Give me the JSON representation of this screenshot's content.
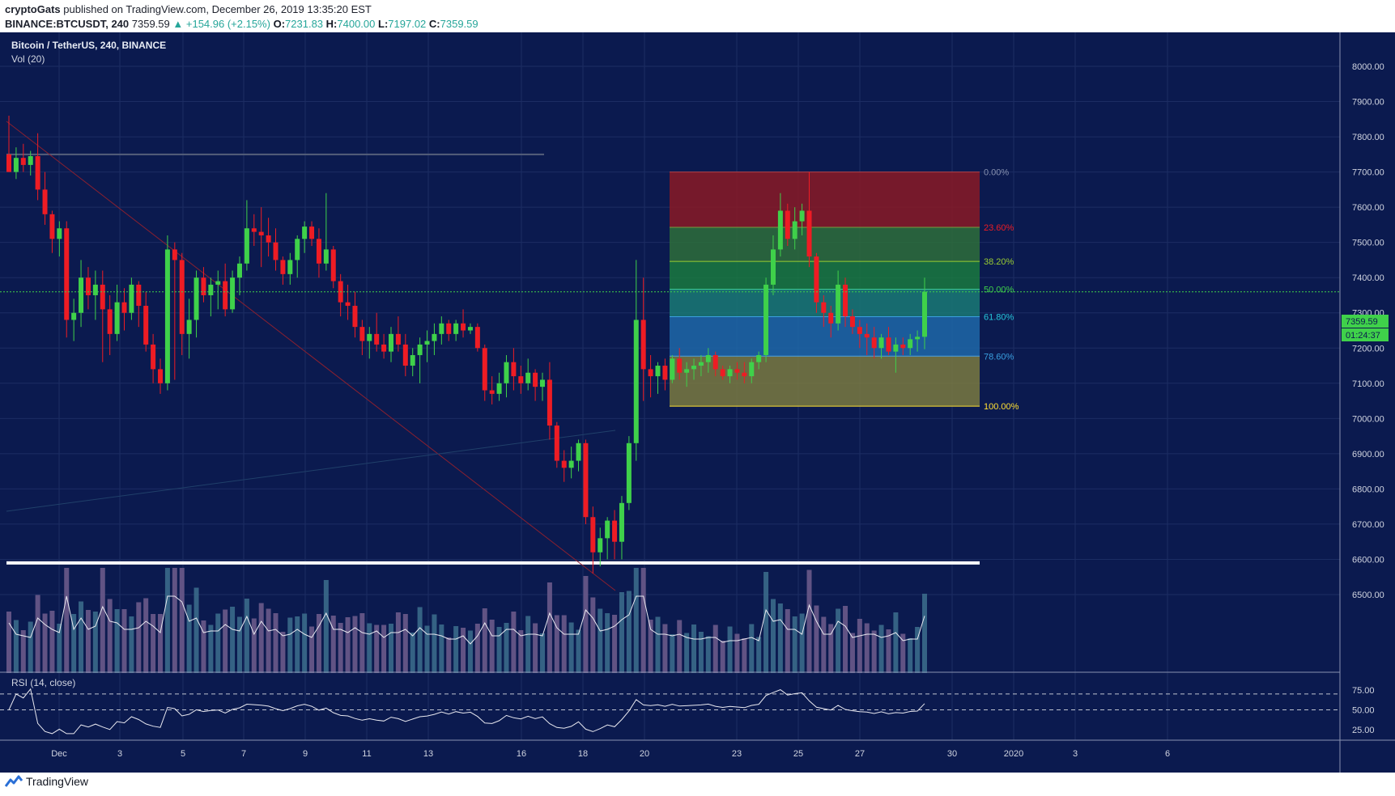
{
  "header": {
    "publisher": "cryptoGats",
    "published_text": "published on TradingView.com, December 26, 2019 13:35:20 EST",
    "symbol": "BINANCE:BTCUSDT, 240",
    "last": "7359.59",
    "change": "▲ +154.96 (+2.15%)",
    "o_label": "O:",
    "o_value": "7231.83",
    "h_label": "H:",
    "h_value": "7400.00",
    "l_label": "L:",
    "l_value": "7197.02",
    "c_label": "C:",
    "c_value": "7359.59"
  },
  "chart_title": "Bitcoin / TetherUS, 240, BINANCE",
  "volume_label": "Vol (20)",
  "rsi_label": "RSI (14, close)",
  "footer": {
    "brand": "TradingView"
  },
  "colors": {
    "background": "#0b1a4f",
    "bull": "#3fd14a",
    "bear": "#ee1c24",
    "grid": "#1c2d63",
    "text": "#d0d4e0"
  },
  "price_tag": {
    "value": "7359.59",
    "timer": "01:24:37"
  },
  "chart_data": {
    "type": "candlestick",
    "y_ticks": [
      8000,
      7900,
      7800,
      7700,
      7600,
      7500,
      7400,
      7300,
      7200,
      7100,
      7000,
      6900,
      6800,
      6700,
      6600,
      6500
    ],
    "ylim": [
      6455,
      8130
    ],
    "x_ticks": [
      "Dec",
      "3",
      "5",
      "7",
      "9",
      "11",
      "13",
      "16",
      "18",
      "20",
      "23",
      "25",
      "27",
      "30",
      "2020",
      "3",
      "6"
    ],
    "rsi_ticks": [
      75,
      50,
      25
    ],
    "rsi_bands": [
      70,
      50
    ],
    "fibonacci": [
      {
        "level": "0.00%",
        "price": 7700
      },
      {
        "level": "23.60%",
        "price": 7543
      },
      {
        "level": "38.20%",
        "price": 7446
      },
      {
        "level": "50.00%",
        "price": 7367
      },
      {
        "level": "61.80%",
        "price": 7289
      },
      {
        "level": "78.60%",
        "price": 7177
      },
      {
        "level": "100.00%",
        "price": 7035
      }
    ],
    "horizontal_lines": [
      {
        "price": 7750,
        "color": "#555f7a"
      },
      {
        "price": 6590,
        "color": "#ffffff"
      }
    ],
    "candles": [
      [
        7750,
        7860,
        7700,
        7700
      ],
      [
        7700,
        7770,
        7680,
        7740
      ],
      [
        7740,
        7780,
        7700,
        7720
      ],
      [
        7720,
        7760,
        7690,
        7745
      ],
      [
        7745,
        7810,
        7620,
        7650
      ],
      [
        7650,
        7700,
        7550,
        7580
      ],
      [
        7580,
        7590,
        7470,
        7510
      ],
      [
        7510,
        7560,
        7460,
        7540
      ],
      [
        7540,
        7560,
        7230,
        7280
      ],
      [
        7280,
        7340,
        7220,
        7300
      ],
      [
        7300,
        7450,
        7260,
        7400
      ],
      [
        7400,
        7430,
        7310,
        7350
      ],
      [
        7350,
        7420,
        7280,
        7380
      ],
      [
        7380,
        7420,
        7160,
        7310
      ],
      [
        7310,
        7350,
        7180,
        7240
      ],
      [
        7240,
        7380,
        7220,
        7330
      ],
      [
        7330,
        7370,
        7250,
        7300
      ],
      [
        7300,
        7400,
        7280,
        7380
      ],
      [
        7380,
        7390,
        7260,
        7320
      ],
      [
        7320,
        7360,
        7190,
        7210
      ],
      [
        7210,
        7240,
        7100,
        7140
      ],
      [
        7140,
        7170,
        7070,
        7100
      ],
      [
        7100,
        7520,
        7080,
        7480
      ],
      [
        7480,
        7500,
        7110,
        7450
      ],
      [
        7450,
        7470,
        7180,
        7240
      ],
      [
        7240,
        7340,
        7170,
        7280
      ],
      [
        7280,
        7420,
        7230,
        7400
      ],
      [
        7400,
        7430,
        7330,
        7350
      ],
      [
        7350,
        7400,
        7290,
        7380
      ],
      [
        7380,
        7420,
        7310,
        7390
      ],
      [
        7390,
        7440,
        7290,
        7310
      ],
      [
        7310,
        7420,
        7300,
        7400
      ],
      [
        7400,
        7460,
        7350,
        7440
      ],
      [
        7440,
        7620,
        7420,
        7540
      ],
      [
        7540,
        7580,
        7490,
        7530
      ],
      [
        7530,
        7600,
        7430,
        7520
      ],
      [
        7520,
        7570,
        7460,
        7500
      ],
      [
        7500,
        7540,
        7420,
        7450
      ],
      [
        7450,
        7460,
        7380,
        7410
      ],
      [
        7410,
        7470,
        7380,
        7450
      ],
      [
        7450,
        7520,
        7400,
        7510
      ],
      [
        7510,
        7560,
        7470,
        7545
      ],
      [
        7545,
        7560,
        7490,
        7510
      ],
      [
        7510,
        7540,
        7400,
        7440
      ],
      [
        7440,
        7640,
        7420,
        7480
      ],
      [
        7480,
        7490,
        7370,
        7390
      ],
      [
        7390,
        7410,
        7290,
        7330
      ],
      [
        7330,
        7380,
        7280,
        7320
      ],
      [
        7320,
        7360,
        7230,
        7260
      ],
      [
        7260,
        7280,
        7180,
        7220
      ],
      [
        7220,
        7260,
        7170,
        7240
      ],
      [
        7240,
        7300,
        7190,
        7210
      ],
      [
        7210,
        7240,
        7170,
        7190
      ],
      [
        7190,
        7260,
        7160,
        7240
      ],
      [
        7240,
        7290,
        7190,
        7210
      ],
      [
        7210,
        7240,
        7120,
        7150
      ],
      [
        7150,
        7200,
        7120,
        7180
      ],
      [
        7180,
        7230,
        7100,
        7210
      ],
      [
        7210,
        7250,
        7160,
        7220
      ],
      [
        7220,
        7270,
        7180,
        7240
      ],
      [
        7240,
        7290,
        7210,
        7270
      ],
      [
        7270,
        7280,
        7220,
        7240
      ],
      [
        7240,
        7280,
        7220,
        7270
      ],
      [
        7270,
        7310,
        7230,
        7250
      ],
      [
        7250,
        7270,
        7240,
        7260
      ],
      [
        7260,
        7270,
        7190,
        7200
      ],
      [
        7200,
        7210,
        7050,
        7080
      ],
      [
        7080,
        7120,
        7040,
        7070
      ],
      [
        7070,
        7130,
        7050,
        7100
      ],
      [
        7100,
        7180,
        7060,
        7160
      ],
      [
        7160,
        7200,
        7080,
        7120
      ],
      [
        7120,
        7150,
        7070,
        7100
      ],
      [
        7100,
        7170,
        7080,
        7130
      ],
      [
        7130,
        7140,
        7050,
        7090
      ],
      [
        7090,
        7130,
        7050,
        7110
      ],
      [
        7110,
        7160,
        6940,
        6980
      ],
      [
        6980,
        6990,
        6860,
        6880
      ],
      [
        6880,
        6910,
        6820,
        6860
      ],
      [
        6860,
        6920,
        6830,
        6880
      ],
      [
        6880,
        6940,
        6850,
        6930
      ],
      [
        6930,
        6940,
        6700,
        6720
      ],
      [
        6720,
        6750,
        6560,
        6620
      ],
      [
        6620,
        6690,
        6580,
        6660
      ],
      [
        6660,
        6720,
        6600,
        6710
      ],
      [
        6710,
        6740,
        6600,
        6650
      ],
      [
        6650,
        6780,
        6600,
        6760
      ],
      [
        6760,
        6950,
        6740,
        6930
      ],
      [
        6930,
        7450,
        6880,
        7280
      ],
      [
        7280,
        7400,
        7050,
        7140
      ],
      [
        7140,
        7180,
        7060,
        7120
      ],
      [
        7120,
        7160,
        7070,
        7150
      ],
      [
        7150,
        7170,
        7080,
        7110
      ],
      [
        7110,
        7180,
        7100,
        7170
      ],
      [
        7170,
        7200,
        7110,
        7130
      ],
      [
        7130,
        7160,
        7090,
        7140
      ],
      [
        7140,
        7170,
        7110,
        7150
      ],
      [
        7150,
        7180,
        7120,
        7160
      ],
      [
        7160,
        7200,
        7130,
        7180
      ],
      [
        7180,
        7190,
        7120,
        7140
      ],
      [
        7140,
        7150,
        7110,
        7120
      ],
      [
        7120,
        7150,
        7100,
        7140
      ],
      [
        7140,
        7160,
        7110,
        7130
      ],
      [
        7130,
        7160,
        7100,
        7120
      ],
      [
        7120,
        7170,
        7100,
        7160
      ],
      [
        7160,
        7190,
        7140,
        7180
      ],
      [
        7180,
        7400,
        7160,
        7380
      ],
      [
        7380,
        7520,
        7350,
        7480
      ],
      [
        7480,
        7640,
        7460,
        7590
      ],
      [
        7590,
        7610,
        7490,
        7510
      ],
      [
        7510,
        7600,
        7480,
        7560
      ],
      [
        7560,
        7610,
        7520,
        7590
      ],
      [
        7590,
        7700,
        7430,
        7460
      ],
      [
        7460,
        7470,
        7300,
        7330
      ],
      [
        7330,
        7350,
        7260,
        7300
      ],
      [
        7300,
        7320,
        7230,
        7270
      ],
      [
        7270,
        7420,
        7250,
        7380
      ],
      [
        7380,
        7400,
        7260,
        7290
      ],
      [
        7290,
        7310,
        7240,
        7260
      ],
      [
        7260,
        7280,
        7200,
        7240
      ],
      [
        7240,
        7270,
        7180,
        7230
      ],
      [
        7230,
        7260,
        7170,
        7200
      ],
      [
        7200,
        7240,
        7170,
        7230
      ],
      [
        7230,
        7260,
        7180,
        7190
      ],
      [
        7190,
        7230,
        7130,
        7210
      ],
      [
        7210,
        7230,
        7180,
        7200
      ],
      [
        7200,
        7240,
        7180,
        7225
      ],
      [
        7225,
        7250,
        7190,
        7232
      ],
      [
        7232,
        7400,
        7197,
        7360
      ]
    ]
  }
}
